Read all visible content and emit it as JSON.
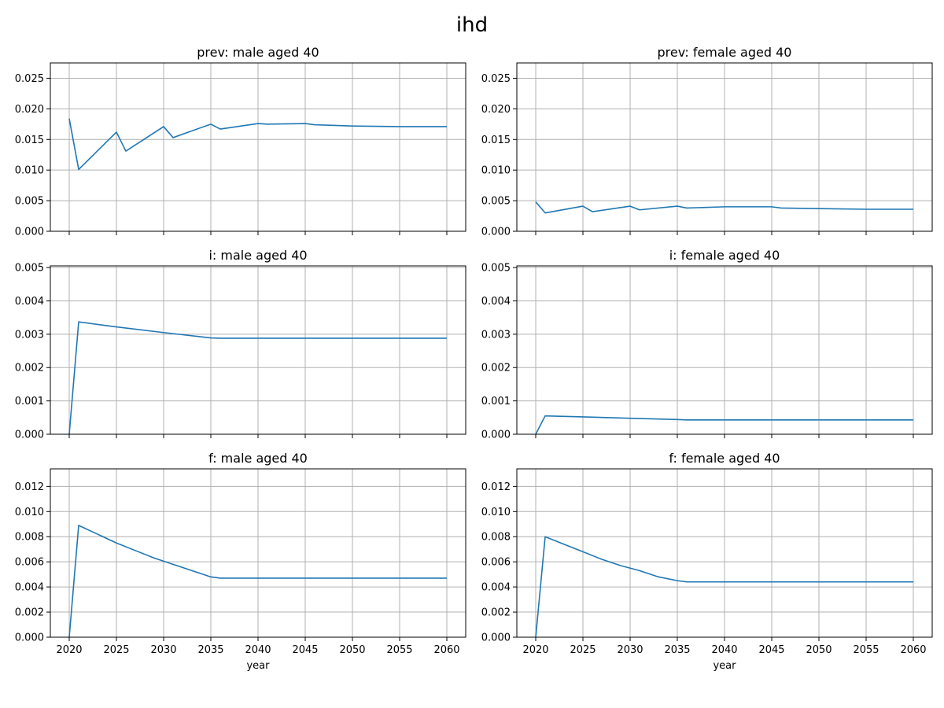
{
  "figure": {
    "title": "ihd",
    "series_color": "#1f77b4",
    "grid": true
  },
  "chart_data": [
    {
      "type": "line",
      "title": "prev: male aged 40",
      "xlabel": "",
      "ylabel": "",
      "xlim": [
        2018,
        2062
      ],
      "ylim": [
        0,
        0.0275
      ],
      "xticks": [
        2020,
        2025,
        2030,
        2035,
        2040,
        2045,
        2050,
        2055,
        2060
      ],
      "yticks": [
        0.0,
        0.005,
        0.01,
        0.015,
        0.02,
        0.025
      ],
      "ytick_labels": [
        "0.000",
        "0.005",
        "0.010",
        "0.015",
        "0.020",
        "0.025"
      ],
      "show_xtick_labels": false,
      "x": [
        2020,
        2021,
        2025,
        2026,
        2030,
        2031,
        2035,
        2036,
        2040,
        2041,
        2045,
        2046,
        2050,
        2055,
        2060
      ],
      "y": [
        0.0184,
        0.0101,
        0.0162,
        0.0131,
        0.0171,
        0.0153,
        0.0175,
        0.0167,
        0.0176,
        0.0175,
        0.0176,
        0.0174,
        0.0172,
        0.0171,
        0.0171
      ]
    },
    {
      "type": "line",
      "title": "prev: female aged 40",
      "xlabel": "",
      "ylabel": "",
      "xlim": [
        2018,
        2062
      ],
      "ylim": [
        0,
        0.0275
      ],
      "xticks": [
        2020,
        2025,
        2030,
        2035,
        2040,
        2045,
        2050,
        2055,
        2060
      ],
      "yticks": [
        0.0,
        0.005,
        0.01,
        0.015,
        0.02,
        0.025
      ],
      "ytick_labels": [
        "0.000",
        "0.005",
        "0.010",
        "0.015",
        "0.020",
        "0.025"
      ],
      "show_xtick_labels": false,
      "x": [
        2020,
        2021,
        2025,
        2026,
        2030,
        2031,
        2035,
        2036,
        2040,
        2041,
        2045,
        2046,
        2050,
        2055,
        2060
      ],
      "y": [
        0.0048,
        0.003,
        0.0041,
        0.0032,
        0.0041,
        0.0035,
        0.0041,
        0.0038,
        0.004,
        0.004,
        0.004,
        0.0038,
        0.0037,
        0.0036,
        0.0036
      ]
    },
    {
      "type": "line",
      "title": "i: male aged 40",
      "xlabel": "",
      "ylabel": "",
      "xlim": [
        2018,
        2062
      ],
      "ylim": [
        0,
        0.00505
      ],
      "xticks": [
        2020,
        2025,
        2030,
        2035,
        2040,
        2045,
        2050,
        2055,
        2060
      ],
      "yticks": [
        0.0,
        0.001,
        0.002,
        0.003,
        0.004,
        0.005
      ],
      "ytick_labels": [
        "0.000",
        "0.001",
        "0.002",
        "0.003",
        "0.004",
        "0.005"
      ],
      "show_xtick_labels": false,
      "x": [
        2020,
        2021,
        2025,
        2030,
        2035,
        2036,
        2040,
        2045,
        2050,
        2055,
        2060
      ],
      "y": [
        0.0,
        0.00337,
        0.00322,
        0.00305,
        0.00289,
        0.00288,
        0.00288,
        0.00288,
        0.00288,
        0.00288,
        0.00288
      ]
    },
    {
      "type": "line",
      "title": "i: female aged 40",
      "xlabel": "",
      "ylabel": "",
      "xlim": [
        2018,
        2062
      ],
      "ylim": [
        0,
        0.00505
      ],
      "xticks": [
        2020,
        2025,
        2030,
        2035,
        2040,
        2045,
        2050,
        2055,
        2060
      ],
      "yticks": [
        0.0,
        0.001,
        0.002,
        0.003,
        0.004,
        0.005
      ],
      "ytick_labels": [
        "0.000",
        "0.001",
        "0.002",
        "0.003",
        "0.004",
        "0.005"
      ],
      "show_xtick_labels": false,
      "x": [
        2020,
        2021,
        2025,
        2030,
        2035,
        2036,
        2040,
        2045,
        2050,
        2055,
        2060
      ],
      "y": [
        0.0,
        0.00055,
        0.00052,
        0.00048,
        0.00044,
        0.00043,
        0.00043,
        0.00043,
        0.00043,
        0.00043,
        0.00043
      ]
    },
    {
      "type": "line",
      "title": "f: male aged 40",
      "xlabel": "year",
      "ylabel": "",
      "xlim": [
        2018,
        2062
      ],
      "ylim": [
        0,
        0.0134
      ],
      "xticks": [
        2020,
        2025,
        2030,
        2035,
        2040,
        2045,
        2050,
        2055,
        2060
      ],
      "yticks": [
        0.0,
        0.002,
        0.004,
        0.006,
        0.008,
        0.01,
        0.012
      ],
      "ytick_labels": [
        "0.000",
        "0.002",
        "0.004",
        "0.006",
        "0.008",
        "0.010",
        "0.012"
      ],
      "xtick_labels": [
        "2020",
        "2025",
        "2030",
        "2035",
        "2040",
        "2045",
        "2050",
        "2055",
        "2060"
      ],
      "show_xtick_labels": true,
      "x": [
        2020,
        2021,
        2023,
        2025,
        2027,
        2029,
        2031,
        2033,
        2035,
        2036,
        2040,
        2045,
        2050,
        2055,
        2060
      ],
      "y": [
        0.0,
        0.0089,
        0.0082,
        0.0075,
        0.0069,
        0.0063,
        0.0058,
        0.0053,
        0.0048,
        0.0047,
        0.0047,
        0.0047,
        0.0047,
        0.0047,
        0.0047
      ]
    },
    {
      "type": "line",
      "title": "f: female aged 40",
      "xlabel": "year",
      "ylabel": "",
      "xlim": [
        2018,
        2062
      ],
      "ylim": [
        0,
        0.0134
      ],
      "xticks": [
        2020,
        2025,
        2030,
        2035,
        2040,
        2045,
        2050,
        2055,
        2060
      ],
      "yticks": [
        0.0,
        0.002,
        0.004,
        0.006,
        0.008,
        0.01,
        0.012
      ],
      "ytick_labels": [
        "0.000",
        "0.002",
        "0.004",
        "0.006",
        "0.008",
        "0.010",
        "0.012"
      ],
      "xtick_labels": [
        "2020",
        "2025",
        "2030",
        "2035",
        "2040",
        "2045",
        "2050",
        "2055",
        "2060"
      ],
      "show_xtick_labels": true,
      "x": [
        2020,
        2021,
        2023,
        2025,
        2027,
        2029,
        2031,
        2033,
        2035,
        2036,
        2040,
        2045,
        2050,
        2055,
        2060
      ],
      "y": [
        0.0,
        0.008,
        0.0074,
        0.0068,
        0.0062,
        0.0057,
        0.0053,
        0.0048,
        0.0045,
        0.0044,
        0.0044,
        0.0044,
        0.0044,
        0.0044,
        0.0044
      ]
    }
  ]
}
